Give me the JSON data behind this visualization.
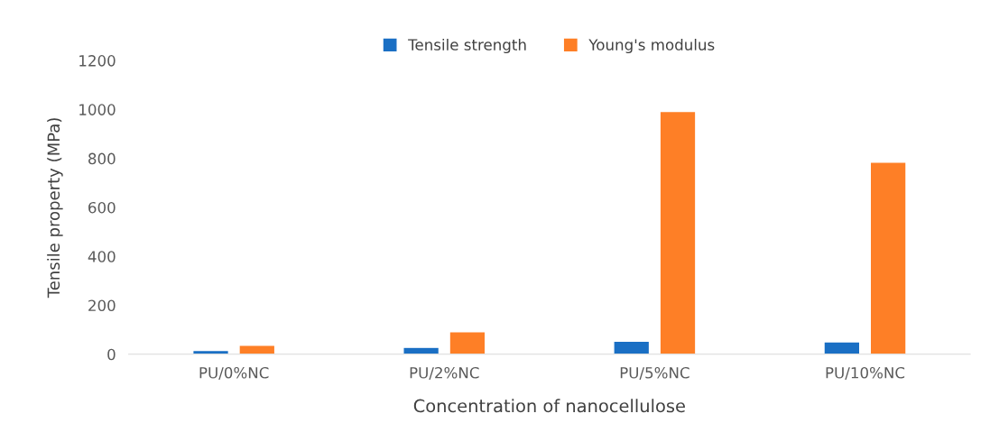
{
  "chart_data": {
    "type": "bar",
    "xlabel": "Concentration of nanocellulose",
    "ylabel": "Tensile property (MPa)",
    "categories": [
      "PU/0%NC",
      "PU/2%NC",
      "PU/5%NC",
      "PU/10%NC"
    ],
    "series": [
      {
        "name": "Tensile strength",
        "color": "#1a6fc4",
        "values": [
          16,
          28,
          53,
          51
        ]
      },
      {
        "name": "Young's modulus",
        "color": "#fe7f26",
        "values": [
          37,
          92,
          992,
          785
        ]
      }
    ],
    "ylim": [
      0,
      1200
    ],
    "yticks": [
      0,
      200,
      400,
      600,
      800,
      1000,
      1200
    ],
    "grid": false,
    "legend": "top"
  }
}
